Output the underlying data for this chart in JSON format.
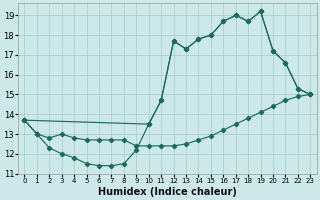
{
  "xlabel": "Humidex (Indice chaleur)",
  "bg_color": "#cce8e8",
  "grid_color": "#aad0d0",
  "line_color": "#1a6b5a",
  "xlim": [
    -0.5,
    23.5
  ],
  "ylim": [
    11.0,
    19.6
  ],
  "yticks": [
    11,
    12,
    13,
    14,
    15,
    16,
    17,
    18,
    19
  ],
  "xticks": [
    0,
    1,
    2,
    3,
    4,
    5,
    6,
    7,
    8,
    9,
    10,
    11,
    12,
    13,
    14,
    15,
    16,
    17,
    18,
    19,
    20,
    21,
    22,
    23
  ],
  "line1_x": [
    0,
    1,
    2,
    3,
    4,
    5,
    6,
    7,
    8,
    9,
    10,
    11,
    12,
    13,
    14,
    15,
    16,
    17,
    18,
    19,
    20,
    21,
    22,
    23
  ],
  "line1_y": [
    13.7,
    13.0,
    12.3,
    12.0,
    11.8,
    11.5,
    11.4,
    11.4,
    11.5,
    12.2,
    13.5,
    14.7,
    17.7,
    17.3,
    17.8,
    18.0,
    18.7,
    19.0,
    18.7,
    19.2,
    17.2,
    16.6,
    15.3,
    15.0
  ],
  "line2_x": [
    0,
    1,
    2,
    3,
    4,
    5,
    6,
    7,
    8,
    9,
    10,
    11,
    12,
    13,
    14,
    15,
    16,
    17,
    18,
    19,
    20,
    21,
    22,
    23
  ],
  "line2_y": [
    13.7,
    13.0,
    12.8,
    13.0,
    12.8,
    12.7,
    12.7,
    12.7,
    12.7,
    12.4,
    12.4,
    12.4,
    12.4,
    12.5,
    12.7,
    12.9,
    13.2,
    13.5,
    13.8,
    14.1,
    14.4,
    14.7,
    14.9,
    15.0
  ],
  "line3_x": [
    0,
    10,
    11,
    12,
    13,
    14,
    15,
    16,
    17,
    18,
    19,
    20,
    21,
    22,
    23
  ],
  "line3_y": [
    13.7,
    13.5,
    14.7,
    17.7,
    17.3,
    17.8,
    18.0,
    18.7,
    19.0,
    18.7,
    19.2,
    17.2,
    16.6,
    15.3,
    15.0
  ]
}
